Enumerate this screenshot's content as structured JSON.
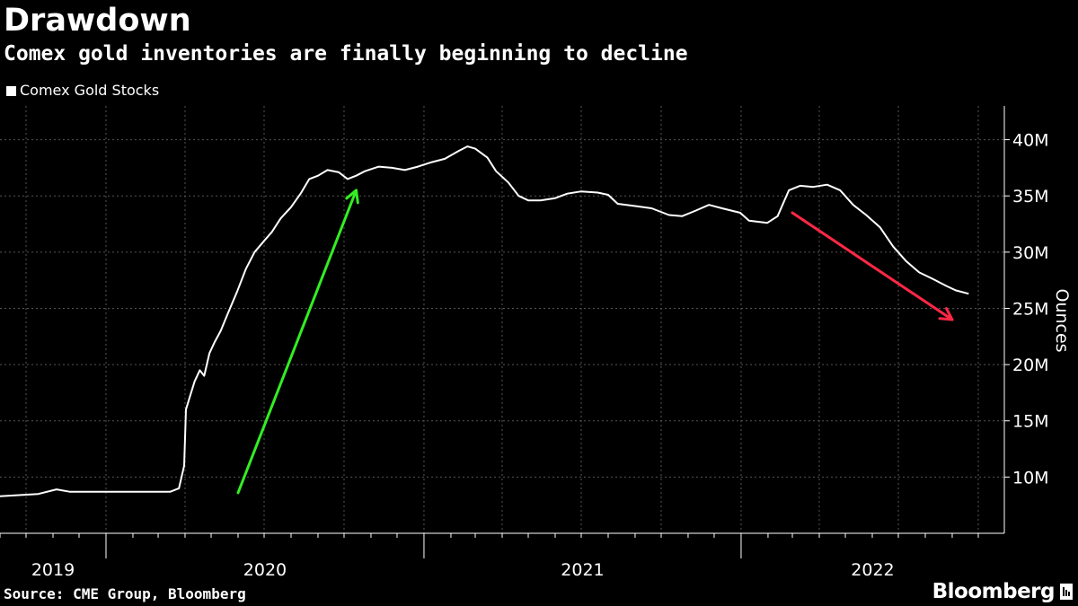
{
  "header": {
    "title": "Drawdown",
    "subtitle": "Comex gold inventories are finally beginning to decline"
  },
  "legend": {
    "label": "Comex Gold Stocks"
  },
  "footer": {
    "source": "Source: CME Group, Bloomberg",
    "brand": "Bloomberg"
  },
  "chart_data": {
    "type": "line",
    "title": "Drawdown",
    "subtitle": "Comex gold inventories are finally beginning to decline",
    "ylabel": "Ounces",
    "ylim": [
      5,
      43
    ],
    "yticks": [
      10,
      15,
      20,
      25,
      30,
      35,
      40
    ],
    "ytick_labels": [
      "10M",
      "15M",
      "20M",
      "25M",
      "30M",
      "35M",
      "40M"
    ],
    "xlim": [
      "2019-09-01",
      "2022-10-31"
    ],
    "xtick_labels": [
      "2019",
      "2020",
      "2021",
      "2022"
    ],
    "legend_position": "top-left",
    "grid": true,
    "series": [
      {
        "name": "Comex Gold Stocks",
        "color": "#ffffff",
        "points": [
          [
            "2019-09-01",
            8.3
          ],
          [
            "2019-09-25",
            8.4
          ],
          [
            "2019-10-15",
            8.5
          ],
          [
            "2019-11-05",
            8.9
          ],
          [
            "2019-11-20",
            8.7
          ],
          [
            "2019-12-31",
            8.7
          ],
          [
            "2020-02-01",
            8.7
          ],
          [
            "2020-03-15",
            8.7
          ],
          [
            "2020-03-25",
            9.0
          ],
          [
            "2020-03-31",
            11.0
          ],
          [
            "2020-04-02",
            16.0
          ],
          [
            "2020-04-06",
            17.0
          ],
          [
            "2020-04-12",
            18.5
          ],
          [
            "2020-04-18",
            19.5
          ],
          [
            "2020-04-23",
            19.0
          ],
          [
            "2020-04-29",
            21.0
          ],
          [
            "2020-05-05",
            22.0
          ],
          [
            "2020-05-12",
            23.0
          ],
          [
            "2020-05-20",
            24.5
          ],
          [
            "2020-05-31",
            26.5
          ],
          [
            "2020-06-10",
            28.5
          ],
          [
            "2020-06-20",
            30.0
          ],
          [
            "2020-07-01",
            31.0
          ],
          [
            "2020-07-10",
            31.8
          ],
          [
            "2020-07-20",
            33.0
          ],
          [
            "2020-08-01",
            34.0
          ],
          [
            "2020-08-12",
            35.2
          ],
          [
            "2020-08-22",
            36.5
          ],
          [
            "2020-09-01",
            36.8
          ],
          [
            "2020-09-12",
            37.3
          ],
          [
            "2020-09-25",
            37.1
          ],
          [
            "2020-10-05",
            36.5
          ],
          [
            "2020-10-15",
            36.8
          ],
          [
            "2020-10-25",
            37.2
          ],
          [
            "2020-11-10",
            37.6
          ],
          [
            "2020-11-25",
            37.5
          ],
          [
            "2020-12-10",
            37.3
          ],
          [
            "2020-12-25",
            37.6
          ],
          [
            "2021-01-10",
            38.0
          ],
          [
            "2021-01-25",
            38.3
          ],
          [
            "2021-02-10",
            39.0
          ],
          [
            "2021-02-20",
            39.4
          ],
          [
            "2021-03-01",
            39.2
          ],
          [
            "2021-03-15",
            38.4
          ],
          [
            "2021-03-25",
            37.2
          ],
          [
            "2021-04-08",
            36.2
          ],
          [
            "2021-04-20",
            35.0
          ],
          [
            "2021-05-01",
            34.6
          ],
          [
            "2021-05-15",
            34.6
          ],
          [
            "2021-06-01",
            34.8
          ],
          [
            "2021-06-15",
            35.2
          ],
          [
            "2021-07-01",
            35.4
          ],
          [
            "2021-07-20",
            35.3
          ],
          [
            "2021-08-01",
            35.1
          ],
          [
            "2021-08-12",
            34.3
          ],
          [
            "2021-09-01",
            34.1
          ],
          [
            "2021-09-20",
            33.9
          ],
          [
            "2021-10-10",
            33.3
          ],
          [
            "2021-10-25",
            33.2
          ],
          [
            "2021-11-10",
            33.7
          ],
          [
            "2021-11-25",
            34.2
          ],
          [
            "2021-12-10",
            33.9
          ],
          [
            "2021-12-31",
            33.5
          ],
          [
            "2022-01-10",
            32.8
          ],
          [
            "2022-01-31",
            32.6
          ],
          [
            "2022-02-12",
            33.2
          ],
          [
            "2022-02-25",
            35.5
          ],
          [
            "2022-03-10",
            35.9
          ],
          [
            "2022-03-25",
            35.8
          ],
          [
            "2022-04-10",
            36.0
          ],
          [
            "2022-04-25",
            35.5
          ],
          [
            "2022-05-10",
            34.2
          ],
          [
            "2022-05-25",
            33.3
          ],
          [
            "2022-06-10",
            32.2
          ],
          [
            "2022-06-25",
            30.5
          ],
          [
            "2022-07-10",
            29.2
          ],
          [
            "2022-07-25",
            28.2
          ],
          [
            "2022-08-10",
            27.6
          ],
          [
            "2022-08-25",
            27.0
          ],
          [
            "2022-09-05",
            26.6
          ],
          [
            "2022-09-20",
            26.3
          ]
        ]
      }
    ],
    "annotations": [
      {
        "type": "arrow",
        "color": "#33ee22",
        "from": [
          "2020-06-01",
          8.6
        ],
        "to": [
          "2020-10-15",
          35.5
        ]
      },
      {
        "type": "arrow",
        "color": "#ff2845",
        "from": [
          "2022-03-01",
          33.5
        ],
        "to": [
          "2022-09-01",
          24.0
        ]
      }
    ]
  }
}
